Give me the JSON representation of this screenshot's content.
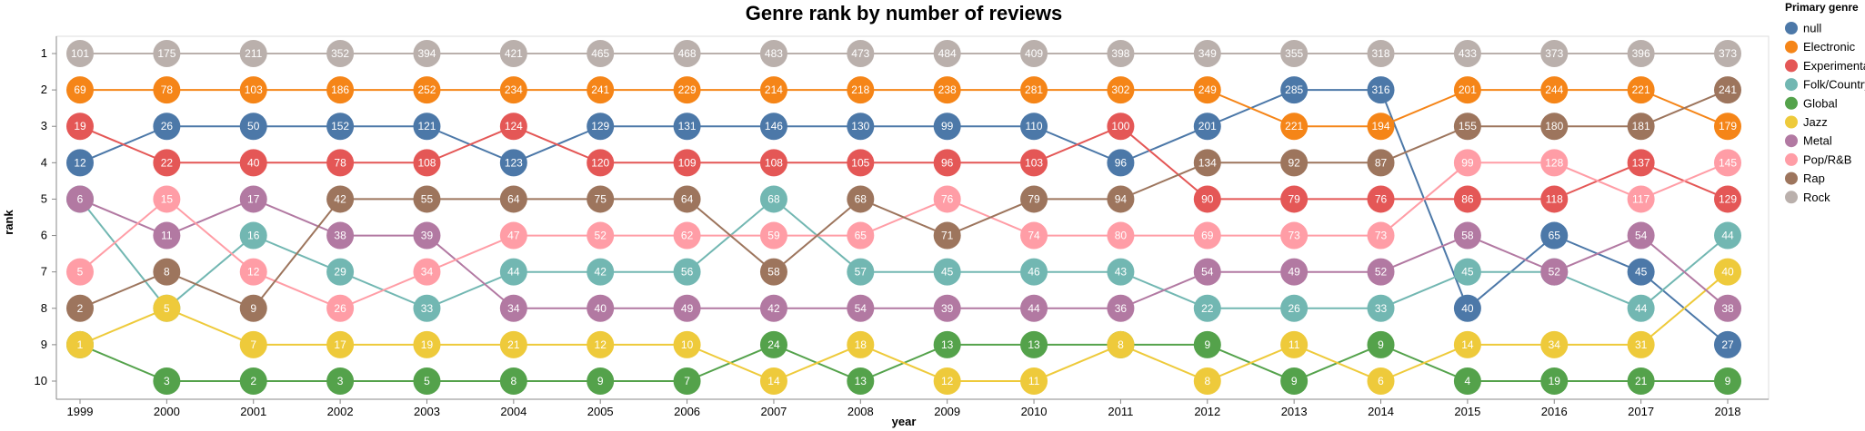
{
  "chart_data": {
    "type": "line",
    "title": "Genre rank by number of reviews",
    "xlabel": "year",
    "ylabel": "rank",
    "x": [
      "1999",
      "2000",
      "2001",
      "2002",
      "2003",
      "2004",
      "2005",
      "2006",
      "2007",
      "2008",
      "2009",
      "2010",
      "2011",
      "2012",
      "2013",
      "2014",
      "2015",
      "2016",
      "2017",
      "2018"
    ],
    "y_ticks": [
      1,
      2,
      3,
      4,
      5,
      6,
      7,
      8,
      9,
      10
    ],
    "ylim": [
      1,
      10
    ],
    "y_reversed": true,
    "grid": false,
    "legend": {
      "title": "Primary genre",
      "placement": "right"
    },
    "series": [
      {
        "name": "null",
        "color": "#4c78a8",
        "rank": [
          4,
          3,
          3,
          3,
          3,
          4,
          3,
          3,
          3,
          3,
          3,
          3,
          4,
          3,
          2,
          2,
          8,
          6,
          7,
          9
        ],
        "count": [
          12,
          26,
          50,
          152,
          121,
          123,
          129,
          131,
          146,
          130,
          99,
          110,
          96,
          201,
          285,
          316,
          40,
          65,
          45,
          27
        ]
      },
      {
        "name": "Electronic",
        "color": "#f58518",
        "rank": [
          2,
          2,
          2,
          2,
          2,
          2,
          2,
          2,
          2,
          2,
          2,
          2,
          2,
          2,
          3,
          3,
          2,
          2,
          2,
          3
        ],
        "count": [
          69,
          78,
          103,
          186,
          252,
          234,
          241,
          229,
          214,
          218,
          238,
          281,
          302,
          249,
          221,
          194,
          201,
          244,
          221,
          179
        ]
      },
      {
        "name": "Experimental",
        "color": "#e45756",
        "rank": [
          3,
          4,
          4,
          4,
          4,
          3,
          4,
          4,
          4,
          4,
          4,
          4,
          3,
          5,
          5,
          5,
          5,
          5,
          4,
          5
        ],
        "count": [
          19,
          22,
          40,
          78,
          108,
          124,
          120,
          109,
          108,
          105,
          96,
          103,
          100,
          90,
          79,
          76,
          86,
          118,
          137,
          129
        ]
      },
      {
        "name": "Folk/Country",
        "color": "#72b7b2",
        "rank": [
          5,
          8,
          6,
          7,
          8,
          7,
          7,
          7,
          5,
          7,
          7,
          7,
          7,
          8,
          8,
          8,
          7,
          7,
          8,
          6
        ],
        "count": [
          6,
          5,
          16,
          29,
          33,
          44,
          42,
          56,
          68,
          57,
          45,
          46,
          43,
          22,
          26,
          33,
          45,
          52,
          44,
          44
        ]
      },
      {
        "name": "Global",
        "color": "#54a24b",
        "rank": [
          9,
          10,
          10,
          10,
          10,
          10,
          10,
          10,
          9,
          10,
          9,
          9,
          9,
          9,
          10,
          9,
          10,
          10,
          10,
          10
        ],
        "count": [
          1,
          3,
          2,
          3,
          5,
          8,
          9,
          7,
          24,
          13,
          13,
          13,
          8,
          9,
          9,
          9,
          4,
          19,
          21,
          9
        ]
      },
      {
        "name": "Jazz",
        "color": "#eeca3b",
        "rank": [
          9,
          8,
          9,
          9,
          9,
          9,
          9,
          9,
          10,
          9,
          10,
          10,
          9,
          10,
          9,
          10,
          9,
          9,
          9,
          7
        ],
        "count": [
          1,
          5,
          7,
          17,
          19,
          21,
          12,
          10,
          14,
          18,
          12,
          11,
          8,
          8,
          11,
          6,
          14,
          34,
          31,
          40
        ]
      },
      {
        "name": "Metal",
        "color": "#b279a2",
        "rank": [
          5,
          6,
          5,
          6,
          6,
          8,
          8,
          8,
          8,
          8,
          8,
          8,
          8,
          7,
          7,
          7,
          6,
          7,
          6,
          8
        ],
        "count": [
          6,
          11,
          17,
          38,
          39,
          34,
          40,
          49,
          42,
          54,
          39,
          44,
          36,
          54,
          49,
          52,
          58,
          52,
          54,
          38
        ]
      },
      {
        "name": "Pop/R&B",
        "color": "#ff9da6",
        "rank": [
          7,
          5,
          7,
          8,
          7,
          6,
          6,
          6,
          6,
          6,
          5,
          6,
          6,
          6,
          6,
          6,
          4,
          4,
          5,
          4
        ],
        "count": [
          5,
          15,
          12,
          26,
          34,
          47,
          52,
          62,
          59,
          65,
          76,
          74,
          80,
          69,
          73,
          73,
          99,
          128,
          117,
          145
        ]
      },
      {
        "name": "Rap",
        "color": "#9d755d",
        "rank": [
          8,
          7,
          8,
          5,
          5,
          5,
          5,
          5,
          7,
          5,
          6,
          5,
          5,
          4,
          4,
          4,
          3,
          3,
          3,
          2
        ],
        "count": [
          2,
          8,
          9,
          42,
          55,
          64,
          75,
          64,
          58,
          68,
          71,
          79,
          94,
          134,
          92,
          87,
          155,
          180,
          181,
          241
        ]
      },
      {
        "name": "Rock",
        "color": "#bab0ac",
        "rank": [
          1,
          1,
          1,
          1,
          1,
          1,
          1,
          1,
          1,
          1,
          1,
          1,
          1,
          1,
          1,
          1,
          1,
          1,
          1,
          1
        ],
        "count": [
          101,
          175,
          211,
          352,
          394,
          421,
          465,
          468,
          483,
          473,
          484,
          409,
          398,
          349,
          355,
          318,
          433,
          373,
          396,
          373
        ]
      }
    ]
  }
}
